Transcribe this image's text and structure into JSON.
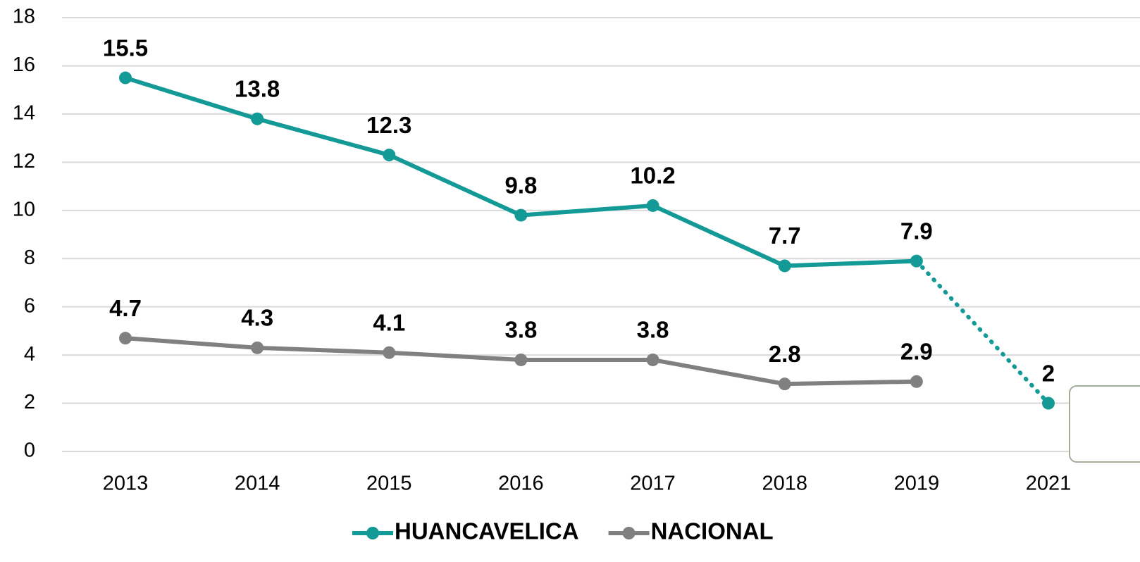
{
  "chart_data": {
    "type": "line",
    "categories": [
      "2013",
      "2014",
      "2015",
      "2016",
      "2017",
      "2018",
      "2019",
      "2021"
    ],
    "series": [
      {
        "name": "HUANCAVELICA",
        "color": "#139a97",
        "values": [
          15.5,
          13.8,
          12.3,
          9.8,
          10.2,
          7.7,
          7.9,
          2
        ]
      },
      {
        "name": "NACIONAL",
        "color": "#808080",
        "values": [
          4.7,
          4.3,
          4.1,
          3.8,
          3.8,
          2.8,
          2.9,
          null
        ]
      }
    ],
    "dotted_from_index": 6,
    "ylim": [
      0,
      18
    ],
    "yticks": [
      0,
      2,
      4,
      6,
      8,
      10,
      12,
      14,
      16,
      18
    ],
    "grid": true,
    "data_labels": true,
    "legend": "bottom"
  }
}
